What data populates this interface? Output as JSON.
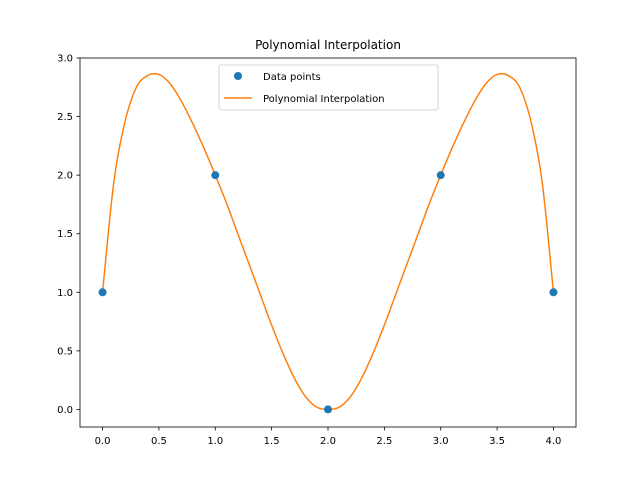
{
  "chart_data": {
    "type": "line",
    "title": "Polynomial Interpolation",
    "xlabel": "",
    "ylabel": "",
    "xlim": [
      -0.2,
      4.2
    ],
    "ylim": [
      -0.15,
      3.0
    ],
    "x_ticks": [
      0.0,
      0.5,
      1.0,
      1.5,
      2.0,
      2.5,
      3.0,
      3.5,
      4.0
    ],
    "x_tick_labels": [
      "0.0",
      "0.5",
      "1.0",
      "1.5",
      "2.0",
      "2.5",
      "3.0",
      "3.5",
      "4.0"
    ],
    "y_ticks": [
      0.0,
      0.5,
      1.0,
      1.5,
      2.0,
      2.5,
      3.0
    ],
    "y_tick_labels": [
      "0.0",
      "0.5",
      "1.0",
      "1.5",
      "2.0",
      "2.5",
      "3.0"
    ],
    "grid": false,
    "legend_position": "top-center",
    "series": [
      {
        "name": "Data points",
        "kind": "scatter",
        "color": "#1f77b4",
        "x": [
          0,
          1,
          2,
          3,
          4
        ],
        "y": [
          1,
          2,
          0,
          2,
          1
        ]
      },
      {
        "name": "Polynomial Interpolation",
        "kind": "line",
        "color": "#ff7f0e",
        "x": [
          0.0,
          0.1,
          0.2,
          0.3,
          0.4,
          0.5,
          0.6,
          0.7,
          0.8,
          0.9,
          1.0,
          1.1,
          1.2,
          1.3,
          1.4,
          1.5,
          1.6,
          1.7,
          1.8,
          1.9,
          2.0,
          2.1,
          2.2,
          2.3,
          2.4,
          2.5,
          2.6,
          2.7,
          2.8,
          2.9,
          3.0,
          3.1,
          3.2,
          3.3,
          3.4,
          3.5,
          3.6,
          3.7,
          3.8,
          3.9,
          4.0
        ],
        "y": [
          1.0,
          1.94,
          2.46,
          2.75,
          2.85,
          2.86,
          2.78,
          2.63,
          2.44,
          2.23,
          2.0,
          1.76,
          1.5,
          1.24,
          0.98,
          0.72,
          0.48,
          0.27,
          0.11,
          0.02,
          0.0,
          0.02,
          0.11,
          0.27,
          0.48,
          0.72,
          0.98,
          1.24,
          1.5,
          1.76,
          2.0,
          2.23,
          2.44,
          2.63,
          2.78,
          2.86,
          2.85,
          2.75,
          2.46,
          1.94,
          1.0
        ]
      }
    ]
  }
}
